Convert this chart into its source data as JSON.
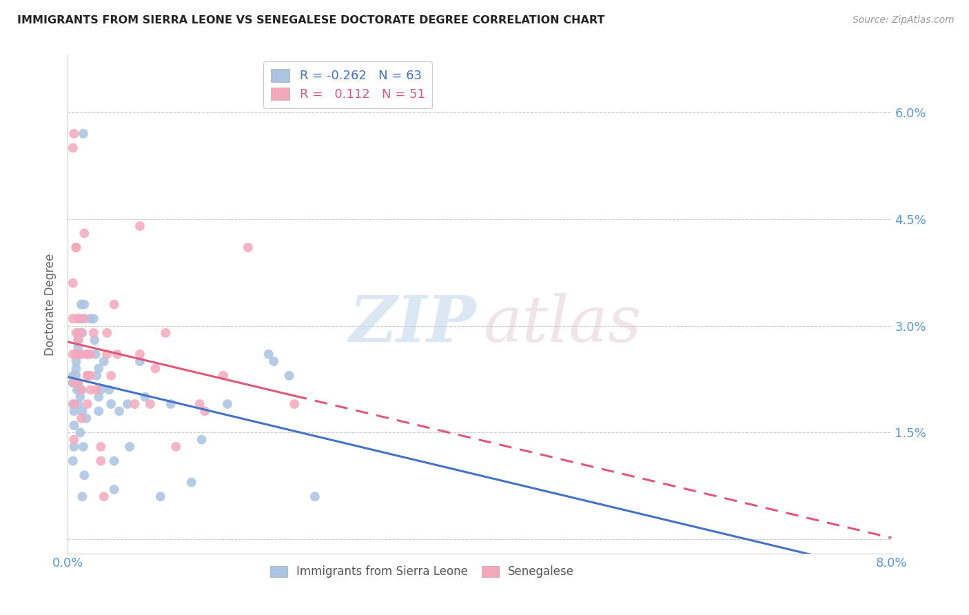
{
  "title": "IMMIGRANTS FROM SIERRA LEONE VS SENEGALESE DOCTORATE DEGREE CORRELATION CHART",
  "source": "Source: ZipAtlas.com",
  "ylabel": "Doctorate Degree",
  "xlim": [
    0.0,
    0.08
  ],
  "ylim": [
    -0.002,
    0.068
  ],
  "x_ticks": [
    0.0,
    0.02,
    0.04,
    0.06,
    0.08
  ],
  "x_tick_labels": [
    "0.0%",
    "",
    "",
    "",
    "8.0%"
  ],
  "y_ticks": [
    0.0,
    0.015,
    0.03,
    0.045,
    0.06
  ],
  "y_tick_labels": [
    "",
    "1.5%",
    "3.0%",
    "4.5%",
    "6.0%"
  ],
  "blue_R": -0.262,
  "blue_N": 63,
  "pink_R": 0.112,
  "pink_N": 51,
  "blue_color": "#aac4e2",
  "pink_color": "#f5a8bc",
  "blue_line_color": "#4472c4",
  "pink_line_color": "#e05878",
  "blue_x": [
    0.0015,
    0.0018,
    0.0005,
    0.0008,
    0.0006,
    0.0008,
    0.001,
    0.001,
    0.0005,
    0.0005,
    0.0005,
    0.0006,
    0.0006,
    0.0006,
    0.0005,
    0.0008,
    0.0009,
    0.001,
    0.001,
    0.0012,
    0.001,
    0.0013,
    0.0015,
    0.0014,
    0.0016,
    0.0018,
    0.001,
    0.0013,
    0.0012,
    0.0014,
    0.0012,
    0.0015,
    0.0016,
    0.0014,
    0.0022,
    0.0025,
    0.0026,
    0.0027,
    0.0028,
    0.001,
    0.003,
    0.0032,
    0.003,
    0.003,
    0.0035,
    0.004,
    0.0042,
    0.0045,
    0.005,
    0.0045,
    0.0058,
    0.006,
    0.007,
    0.0075,
    0.009,
    0.01,
    0.012,
    0.013,
    0.0155,
    0.0195,
    0.02,
    0.0215,
    0.024
  ],
  "blue_y": [
    0.057,
    0.017,
    0.022,
    0.024,
    0.022,
    0.025,
    0.028,
    0.027,
    0.023,
    0.022,
    0.019,
    0.018,
    0.016,
    0.013,
    0.011,
    0.023,
    0.021,
    0.031,
    0.028,
    0.031,
    0.029,
    0.033,
    0.031,
    0.029,
    0.033,
    0.026,
    0.022,
    0.021,
    0.02,
    0.018,
    0.015,
    0.013,
    0.009,
    0.006,
    0.031,
    0.031,
    0.028,
    0.026,
    0.023,
    0.019,
    0.024,
    0.021,
    0.02,
    0.018,
    0.025,
    0.021,
    0.019,
    0.011,
    0.018,
    0.007,
    0.019,
    0.013,
    0.025,
    0.02,
    0.006,
    0.019,
    0.008,
    0.014,
    0.019,
    0.026,
    0.025,
    0.023,
    0.006
  ],
  "pink_x": [
    0.0005,
    0.0006,
    0.0005,
    0.0005,
    0.0005,
    0.0006,
    0.0006,
    0.0006,
    0.0008,
    0.0008,
    0.0008,
    0.0008,
    0.001,
    0.001,
    0.001,
    0.001,
    0.0013,
    0.0013,
    0.0013,
    0.0013,
    0.0016,
    0.0016,
    0.0019,
    0.0019,
    0.0019,
    0.0019,
    0.0022,
    0.0022,
    0.0022,
    0.0025,
    0.0028,
    0.0032,
    0.0032,
    0.0035,
    0.0038,
    0.0038,
    0.0042,
    0.0045,
    0.0048,
    0.0065,
    0.007,
    0.007,
    0.008,
    0.0085,
    0.0095,
    0.0105,
    0.0128,
    0.0133,
    0.0151,
    0.0175,
    0.022
  ],
  "pink_y": [
    0.055,
    0.057,
    0.031,
    0.036,
    0.026,
    0.022,
    0.019,
    0.014,
    0.041,
    0.041,
    0.029,
    0.026,
    0.031,
    0.028,
    0.026,
    0.022,
    0.029,
    0.026,
    0.021,
    0.017,
    0.043,
    0.031,
    0.026,
    0.023,
    0.023,
    0.019,
    0.026,
    0.023,
    0.021,
    0.029,
    0.021,
    0.013,
    0.011,
    0.006,
    0.029,
    0.026,
    0.023,
    0.033,
    0.026,
    0.019,
    0.044,
    0.026,
    0.019,
    0.024,
    0.029,
    0.013,
    0.019,
    0.018,
    0.023,
    0.041,
    0.019
  ]
}
